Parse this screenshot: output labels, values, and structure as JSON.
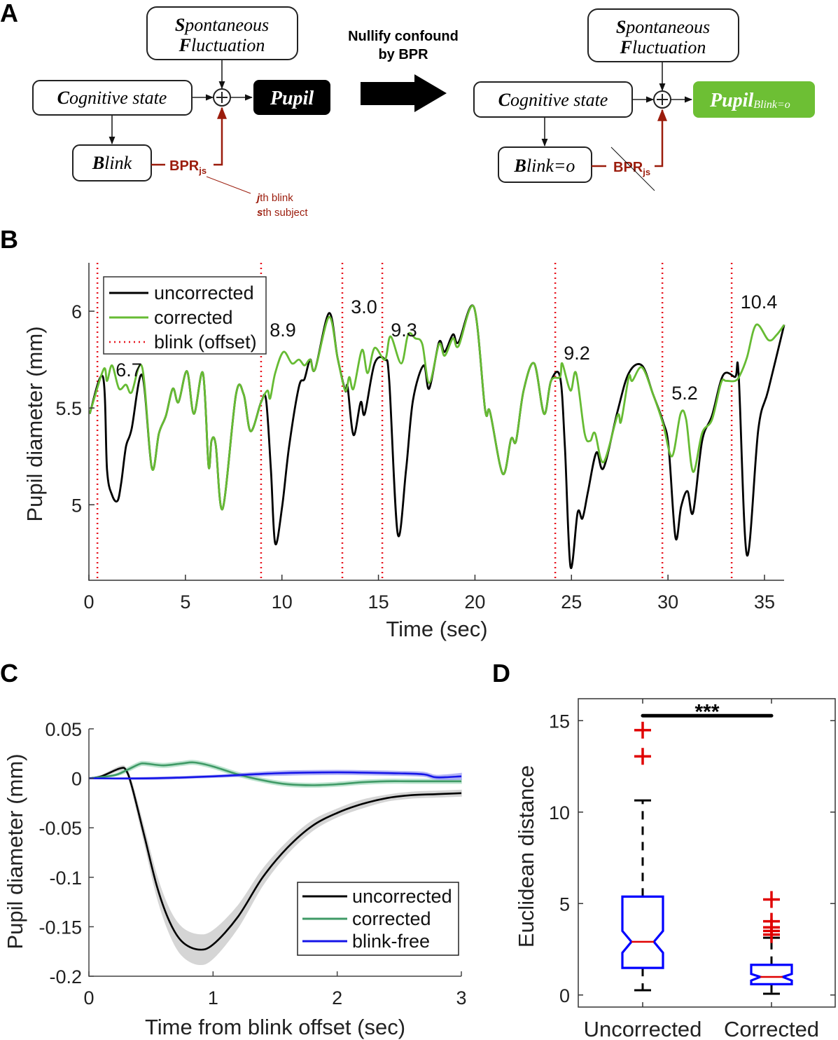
{
  "panel_labels": {
    "a": "A",
    "b": "B",
    "c": "C",
    "d": "D"
  },
  "panel_a": {
    "left": {
      "spontaneous": {
        "l1_initial": "S",
        "l1_rest": "pontaneous",
        "l2_initial": "F",
        "l2_rest": "luctuation"
      },
      "cognitive": {
        "initial": "C",
        "rest": "ognitive state"
      },
      "blink": {
        "initial": "B",
        "rest": "link"
      },
      "pupil": "Pupil",
      "bpr": "BPR",
      "bpr_sub": "js",
      "note_line1_initial": "j",
      "note_line1_rest": "th blink",
      "note_line2_initial": "s",
      "note_line2_rest": "th subject"
    },
    "middle": {
      "line1": "Nullify confound",
      "line2": "by BPR"
    },
    "right": {
      "spontaneous": {
        "l1_initial": "S",
        "l1_rest": "pontaneous",
        "l2_initial": "F",
        "l2_rest": "luctuation"
      },
      "cognitive": {
        "initial": "C",
        "rest": "ognitive state"
      },
      "blink": {
        "initial": "B",
        "rest": "link=o"
      },
      "pupil": "Pupil",
      "pupil_sub": "Blink=o",
      "bpr": "BPR",
      "bpr_sub": "js"
    },
    "colors": {
      "pupil_left": "#000000",
      "pupil_right": "#6dbf34",
      "bpr": "#9b1c0c"
    }
  },
  "chart_data": [
    {
      "panel": "B",
      "type": "line",
      "xlabel": "Time (sec)",
      "ylabel": "Pupil diameter (mm)",
      "xlim": [
        0,
        36
      ],
      "ylim": [
        4.61,
        6.25
      ],
      "xticks": [
        "0",
        "5",
        "10",
        "15",
        "20",
        "25",
        "30",
        "35"
      ],
      "yticks": [
        "5",
        "5.5",
        "6"
      ],
      "legend": {
        "placement": "top-left",
        "entries": [
          "uncorrected",
          "corrected",
          "blink (offset)"
        ]
      },
      "blink_offsets": [
        0.44,
        8.92,
        13.13,
        15.2,
        24.16,
        29.71,
        33.3
      ],
      "annotations": [
        "6.7",
        "8.9",
        "3.0",
        "9.3",
        "9.2",
        "5.2",
        "10.4"
      ],
      "series": [
        {
          "name": "uncorrected",
          "color": "#000000",
          "points": [
            [
              0.04,
              5.47
            ],
            [
              0.73,
              5.66
            ],
            [
              0.94,
              5.18
            ],
            [
              1.2,
              5.05
            ],
            [
              1.48,
              5.02
            ],
            [
              1.67,
              5.11
            ],
            [
              1.92,
              5.3
            ],
            [
              2.21,
              5.39
            ],
            [
              2.76,
              5.67
            ],
            [
              3.26,
              5.19
            ],
            [
              3.63,
              5.37
            ],
            [
              3.99,
              5.46
            ],
            [
              4.35,
              5.6
            ],
            [
              4.64,
              5.53
            ],
            [
              5.08,
              5.69
            ],
            [
              5.44,
              5.47
            ],
            [
              5.91,
              5.68
            ],
            [
              6.2,
              5.2
            ],
            [
              6.35,
              5.33
            ],
            [
              6.57,
              5.31
            ],
            [
              6.93,
              4.98
            ],
            [
              7.62,
              5.57
            ],
            [
              8.02,
              5.57
            ],
            [
              8.38,
              5.38
            ],
            [
              8.92,
              5.53
            ],
            [
              9.18,
              5.54
            ],
            [
              9.43,
              5.18
            ],
            [
              9.65,
              4.8
            ],
            [
              10.01,
              4.99
            ],
            [
              10.37,
              5.3
            ],
            [
              10.88,
              5.61
            ],
            [
              11.17,
              5.65
            ],
            [
              11.46,
              5.75
            ],
            [
              11.72,
              5.7
            ],
            [
              12.44,
              5.99
            ],
            [
              12.88,
              5.76
            ],
            [
              13.28,
              5.59
            ],
            [
              13.4,
              5.61
            ],
            [
              13.71,
              5.36
            ],
            [
              14.08,
              5.53
            ],
            [
              14.29,
              5.47
            ],
            [
              14.8,
              5.73
            ],
            [
              15.34,
              5.75
            ],
            [
              15.56,
              5.64
            ],
            [
              16.0,
              4.85
            ],
            [
              16.43,
              5.18
            ],
            [
              16.79,
              5.54
            ],
            [
              17.34,
              5.72
            ],
            [
              17.63,
              5.6
            ],
            [
              18.14,
              5.84
            ],
            [
              18.43,
              5.79
            ],
            [
              18.86,
              5.88
            ],
            [
              19.15,
              5.84
            ],
            [
              19.95,
              6.02
            ],
            [
              20.53,
              5.49
            ],
            [
              20.78,
              5.48
            ],
            [
              21.44,
              5.16
            ],
            [
              21.87,
              5.34
            ],
            [
              22.13,
              5.33
            ],
            [
              22.52,
              5.59
            ],
            [
              23.07,
              5.73
            ],
            [
              23.58,
              5.47
            ],
            [
              23.94,
              5.64
            ],
            [
              24.41,
              5.66
            ],
            [
              24.66,
              5.3
            ],
            [
              24.95,
              4.68
            ],
            [
              25.32,
              4.96
            ],
            [
              25.57,
              4.93
            ],
            [
              25.86,
              5.07
            ],
            [
              26.29,
              5.27
            ],
            [
              26.66,
              5.19
            ],
            [
              27.38,
              5.48
            ],
            [
              27.97,
              5.68
            ],
            [
              28.65,
              5.72
            ],
            [
              29.23,
              5.57
            ],
            [
              29.74,
              5.43
            ],
            [
              30.03,
              5.3
            ],
            [
              30.39,
              4.83
            ],
            [
              30.68,
              4.99
            ],
            [
              31.01,
              5.07
            ],
            [
              31.3,
              4.96
            ],
            [
              31.77,
              5.33
            ],
            [
              32.28,
              5.46
            ],
            [
              32.86,
              5.67
            ],
            [
              33.48,
              5.66
            ],
            [
              33.66,
              5.67
            ],
            [
              34.09,
              4.74
            ],
            [
              34.68,
              5.39
            ],
            [
              35.19,
              5.59
            ],
            [
              36.02,
              5.93
            ]
          ]
        },
        {
          "name": "corrected",
          "color": "#66bb33",
          "points": [
            [
              0.04,
              5.47
            ],
            [
              0.76,
              5.7
            ],
            [
              0.94,
              5.64
            ],
            [
              1.2,
              5.72
            ],
            [
              1.56,
              5.6
            ],
            [
              1.92,
              5.62
            ],
            [
              2.21,
              5.58
            ],
            [
              2.76,
              5.71
            ],
            [
              3.26,
              5.19
            ],
            [
              3.63,
              5.37
            ],
            [
              3.99,
              5.46
            ],
            [
              4.35,
              5.6
            ],
            [
              4.64,
              5.53
            ],
            [
              5.08,
              5.69
            ],
            [
              5.44,
              5.47
            ],
            [
              5.91,
              5.68
            ],
            [
              6.2,
              5.2
            ],
            [
              6.35,
              5.33
            ],
            [
              6.57,
              5.31
            ],
            [
              6.93,
              4.98
            ],
            [
              7.62,
              5.57
            ],
            [
              8.02,
              5.57
            ],
            [
              8.38,
              5.38
            ],
            [
              8.92,
              5.53
            ],
            [
              9.25,
              5.59
            ],
            [
              9.39,
              5.55
            ],
            [
              9.65,
              5.68
            ],
            [
              10.08,
              5.79
            ],
            [
              10.52,
              5.73
            ],
            [
              10.88,
              5.75
            ],
            [
              11.17,
              5.72
            ],
            [
              11.46,
              5.75
            ],
            [
              11.72,
              5.7
            ],
            [
              12.44,
              5.97
            ],
            [
              12.88,
              5.76
            ],
            [
              13.28,
              5.59
            ],
            [
              13.49,
              5.66
            ],
            [
              13.71,
              5.6
            ],
            [
              14.15,
              5.8
            ],
            [
              14.44,
              5.68
            ],
            [
              14.8,
              5.81
            ],
            [
              15.34,
              5.75
            ],
            [
              15.63,
              5.87
            ],
            [
              16.18,
              5.73
            ],
            [
              16.54,
              5.88
            ],
            [
              16.9,
              5.86
            ],
            [
              17.27,
              5.83
            ],
            [
              17.63,
              5.63
            ],
            [
              18.14,
              5.83
            ],
            [
              18.43,
              5.77
            ],
            [
              18.86,
              5.86
            ],
            [
              19.15,
              5.82
            ],
            [
              19.95,
              6.02
            ],
            [
              20.53,
              5.49
            ],
            [
              20.78,
              5.48
            ],
            [
              21.44,
              5.16
            ],
            [
              21.87,
              5.34
            ],
            [
              22.13,
              5.33
            ],
            [
              22.52,
              5.59
            ],
            [
              23.07,
              5.73
            ],
            [
              23.58,
              5.47
            ],
            [
              23.94,
              5.64
            ],
            [
              24.41,
              5.66
            ],
            [
              24.52,
              5.73
            ],
            [
              24.95,
              5.59
            ],
            [
              25.24,
              5.68
            ],
            [
              25.68,
              5.37
            ],
            [
              25.97,
              5.33
            ],
            [
              26.22,
              5.37
            ],
            [
              26.66,
              5.22
            ],
            [
              27.38,
              5.46
            ],
            [
              27.57,
              5.43
            ],
            [
              27.97,
              5.66
            ],
            [
              28.15,
              5.64
            ],
            [
              28.65,
              5.71
            ],
            [
              29.23,
              5.57
            ],
            [
              29.74,
              5.42
            ],
            [
              30.21,
              5.25
            ],
            [
              30.65,
              5.47
            ],
            [
              30.94,
              5.44
            ],
            [
              31.3,
              5.17
            ],
            [
              31.77,
              5.37
            ],
            [
              32.28,
              5.44
            ],
            [
              32.75,
              5.63
            ],
            [
              33.01,
              5.64
            ],
            [
              33.48,
              5.64
            ],
            [
              33.73,
              5.67
            ],
            [
              34.09,
              5.76
            ],
            [
              34.57,
              5.93
            ],
            [
              35.22,
              5.85
            ],
            [
              35.65,
              5.88
            ],
            [
              36.02,
              5.93
            ]
          ]
        }
      ]
    },
    {
      "panel": "C",
      "type": "line",
      "xlabel": "Time from blink offset (sec)",
      "ylabel": "Pupil diameter (mm)",
      "xlim": [
        0,
        3
      ],
      "ylim": [
        -0.2,
        0.05
      ],
      "xticks": [
        "0",
        "1",
        "2",
        "3"
      ],
      "yticks": [
        "0.05",
        "0",
        "-0.05",
        "-0.1",
        "-0.15",
        "-0.2"
      ],
      "legend": {
        "placement": "bottom-right",
        "entries": [
          "uncorrected",
          "corrected",
          "blink-free"
        ]
      },
      "series": [
        {
          "name": "uncorrected",
          "color": "#000000",
          "band_color": "#c8c8c8",
          "x": [
            0,
            0.1,
            0.25,
            0.3,
            0.35,
            0.45,
            0.55,
            0.65,
            0.75,
            0.88,
            1.0,
            1.2,
            1.4,
            1.6,
            1.8,
            2.0,
            2.2,
            2.4,
            2.6,
            2.8,
            3.0
          ],
          "y": [
            0,
            0.002,
            0.01,
            0.008,
            -0.01,
            -0.06,
            -0.11,
            -0.145,
            -0.165,
            -0.173,
            -0.168,
            -0.14,
            -0.1,
            -0.07,
            -0.048,
            -0.035,
            -0.026,
            -0.02,
            -0.017,
            -0.016,
            -0.015
          ],
          "ci": [
            0,
            0.001,
            0.002,
            0.002,
            0.004,
            0.007,
            0.01,
            0.012,
            0.014,
            0.015,
            0.014,
            0.011,
            0.008,
            0.006,
            0.005,
            0.004,
            0.004,
            0.003,
            0.003,
            0.003,
            0.003
          ]
        },
        {
          "name": "corrected",
          "color": "#3f9a66",
          "band_color": "#a8dcc0",
          "x": [
            0,
            0.2,
            0.3,
            0.4,
            0.45,
            0.6,
            0.75,
            0.85,
            1.0,
            1.2,
            1.4,
            1.6,
            1.8,
            2.0,
            2.2,
            2.4,
            2.6,
            3.0
          ],
          "y": [
            0,
            0.003,
            0.008,
            0.014,
            0.015,
            0.013,
            0.015,
            0.016,
            0.012,
            0.004,
            -0.002,
            -0.006,
            -0.007,
            -0.006,
            -0.004,
            -0.003,
            -0.003,
            -0.003
          ],
          "ci": [
            0,
            0.001,
            0.002,
            0.002,
            0.002,
            0.002,
            0.002,
            0.002,
            0.002,
            0.002,
            0.002,
            0.002,
            0.002,
            0.002,
            0.002,
            0.002,
            0.002,
            0.002
          ]
        },
        {
          "name": "blink-free",
          "color": "#1515e8",
          "band_color": "#9a9af2",
          "x": [
            0,
            0.5,
            1.0,
            1.5,
            2.0,
            2.5,
            2.7,
            2.8,
            3.0
          ],
          "y": [
            0,
            0.0,
            0.002,
            0.005,
            0.006,
            0.005,
            0.004,
            0.001,
            0.002
          ],
          "ci": [
            0,
            0.001,
            0.001,
            0.002,
            0.002,
            0.002,
            0.002,
            0.002,
            0.003
          ]
        }
      ]
    },
    {
      "panel": "D",
      "type": "box",
      "ylabel": "Euclidean distance",
      "ylim": [
        -0.66,
        16.2
      ],
      "yticks": [
        "0",
        "5",
        "10",
        "15"
      ],
      "categories": [
        "Uncorrected",
        "Corrected"
      ],
      "significance": "***",
      "significance_y": 15.27,
      "boxes": [
        {
          "q1": 1.48,
          "median": 2.91,
          "q3": 5.38,
          "notch_low": 2.31,
          "notch_high": 3.5,
          "whisker_low": 0.26,
          "whisker_high": 10.64,
          "outliers": [
            14.48,
            13.05
          ]
        },
        {
          "q1": 0.59,
          "median": 0.99,
          "q3": 1.65,
          "notch_low": 0.79,
          "notch_high": 1.15,
          "whisker_low": 0.07,
          "whisker_high": 3.13,
          "outliers": [
            5.22,
            4.03,
            3.7,
            3.5,
            3.3
          ]
        }
      ],
      "colors": {
        "box": "#0000ff",
        "median": "#e00000",
        "outlier": "#e00000",
        "whisker": "#000000"
      }
    }
  ]
}
